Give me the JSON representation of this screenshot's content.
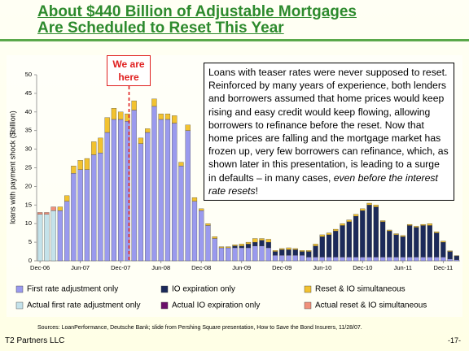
{
  "title": [
    "About $440 Billion of Adjustable Mortgages",
    "Are Scheduled to Reset This Year"
  ],
  "chart_data": {
    "type": "stacked-bar",
    "y_label": "loans with payment shock ($billion)",
    "callout": "We are here",
    "annotation": {
      "text": "Loans with teaser rates were never supposed to reset.  Reinforced by many years of experience, both lenders and borrowers assumed that home prices would keep rising and easy credit would keep flowing, allowing borrowers to refinance before the reset.  Now that home prices are falling and the mortgage market has frozen up, very few borrowers can refinance, which, as shown later in this presentation, is leading to a surge in defaults – in many cases, ",
      "emphasis": "even before the interest rate resets",
      "end": "!"
    },
    "categories": [
      "Dec-06",
      null,
      null,
      null,
      null,
      null,
      "Jun-07",
      null,
      null,
      null,
      null,
      null,
      "Dec-07",
      null,
      null,
      null,
      null,
      null,
      "Jun-08",
      null,
      null,
      null,
      null,
      null,
      "Dec-08",
      null,
      null,
      null,
      null,
      null,
      "Jun-09",
      null,
      null,
      null,
      null,
      null,
      "Dec-09",
      null,
      null,
      null,
      null,
      null,
      "Jun-10",
      null,
      null,
      null,
      null,
      null,
      "Dec-10",
      null,
      null,
      null,
      null,
      null,
      "Jun-11",
      null,
      null,
      null,
      null,
      null,
      "Dec-11",
      null,
      null
    ],
    "ylim": [
      0,
      50
    ],
    "yticks": [
      0,
      5,
      10,
      15,
      20,
      25,
      30,
      35,
      40,
      45,
      50
    ],
    "series": [
      {
        "name": "First rate adjustment only",
        "color": "#9a9aee",
        "values": [
          null,
          null,
          null,
          13.5,
          16,
          23.5,
          24.5,
          24.5,
          28.5,
          29,
          34.5,
          38,
          38,
          37.5,
          40.5,
          31.5,
          34.5,
          41.5,
          38,
          38,
          37,
          25.5,
          35,
          16,
          13.5,
          9.5,
          6,
          3.5,
          3.5,
          3.5,
          3.5,
          3.5,
          4,
          4,
          3.5,
          1.5,
          1.5,
          1.5,
          1.5,
          1.5,
          1,
          1,
          1,
          1,
          1,
          1,
          1,
          1,
          1,
          1,
          1,
          1,
          1,
          1,
          1,
          1,
          1,
          1,
          1,
          1,
          1,
          0.5,
          0.3
        ]
      },
      {
        "name": "IO expiration only",
        "color": "#1c2a5a",
        "values": [
          null,
          null,
          null,
          null,
          null,
          null,
          null,
          null,
          null,
          null,
          null,
          null,
          null,
          null,
          null,
          null,
          null,
          null,
          null,
          null,
          null,
          null,
          null,
          null,
          null,
          null,
          null,
          null,
          null,
          0.5,
          0.5,
          1,
          1,
          1.5,
          1.5,
          1,
          1.5,
          1.5,
          1.5,
          1,
          1.5,
          3,
          5.5,
          6,
          7,
          8.5,
          9.5,
          11,
          12.5,
          14,
          13.5,
          9.5,
          7,
          6,
          5.5,
          8.5,
          8,
          8.5,
          8.5,
          6.5,
          4,
          2,
          1
        ]
      },
      {
        "name": "Reset & IO simultaneous",
        "color": "#f2c230",
        "values": [
          null,
          null,
          null,
          1,
          1.5,
          2,
          2.5,
          3,
          3.5,
          4,
          4,
          3,
          2,
          2,
          2.5,
          1.5,
          1,
          2,
          1.5,
          1.5,
          2,
          1,
          1.5,
          1,
          0.5,
          0.5,
          0.5,
          0.3,
          0.3,
          0.3,
          0.5,
          0.5,
          1,
          0.5,
          0.8,
          0.3,
          0.3,
          0.5,
          0.3,
          0.3,
          0.3,
          0.5,
          0.5,
          0.5,
          0.5,
          0.5,
          0.5,
          0.5,
          0.5,
          0.5,
          0.5,
          0.3,
          0.3,
          0.3,
          0.3,
          0.3,
          0.3,
          0.3,
          0.5,
          0.3,
          0.3,
          0.2,
          0.1
        ]
      },
      {
        "name": "Actual first rate adjustment only",
        "color": "#c4e2ea",
        "values": [
          12.5,
          12.5,
          13.5,
          null,
          null,
          null,
          null,
          null,
          null,
          null,
          null,
          null,
          null,
          null,
          null,
          null,
          null,
          null,
          null,
          null,
          null,
          null,
          null,
          null,
          null,
          null,
          null,
          null,
          null,
          null,
          null,
          null,
          null,
          null,
          null,
          null,
          null,
          null,
          null,
          null,
          null,
          null,
          null,
          null,
          null,
          null,
          null,
          null,
          null,
          null,
          null,
          null,
          null,
          null,
          null,
          null,
          null,
          null,
          null,
          null,
          null,
          null,
          null
        ]
      },
      {
        "name": "Actual IO expiration only",
        "color": "#6a0f6a",
        "values": [
          0,
          0,
          0,
          null,
          null,
          null,
          null,
          null,
          null,
          null,
          null,
          null,
          null,
          null,
          null,
          null,
          null,
          null,
          null,
          null,
          null,
          null,
          null,
          null,
          null,
          null,
          null,
          null,
          null,
          null,
          null,
          null,
          null,
          null,
          null,
          null,
          null,
          null,
          null,
          null,
          null,
          null,
          null,
          null,
          null,
          null,
          null,
          null,
          null,
          null,
          null,
          null,
          null,
          null,
          null,
          null,
          null,
          null,
          null,
          null,
          null,
          null,
          null
        ]
      },
      {
        "name": "Actual reset & IO simultaneous",
        "color": "#f0907a",
        "values": [
          0.5,
          0.5,
          1,
          null,
          null,
          null,
          null,
          null,
          null,
          null,
          null,
          null,
          null,
          null,
          null,
          null,
          null,
          null,
          null,
          null,
          null,
          null,
          null,
          null,
          null,
          null,
          null,
          null,
          null,
          null,
          null,
          null,
          null,
          null,
          null,
          null,
          null,
          null,
          null,
          null,
          null,
          null,
          null,
          null,
          null,
          null,
          null,
          null,
          null,
          null,
          null,
          null,
          null,
          null,
          null,
          null,
          null,
          null,
          null,
          null,
          null,
          null,
          null
        ]
      }
    ]
  },
  "source": "Sources: LoanPerformance, Deutsche Bank; slide from Pershing Square presentation, How to Save the Bond Insurers, 11/28/07.",
  "footer": {
    "firm": "T2 Partners LLC",
    "page": "-17-"
  }
}
